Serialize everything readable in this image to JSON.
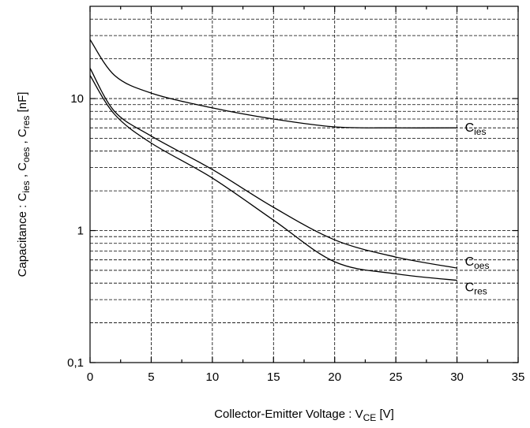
{
  "chart_data": {
    "type": "line",
    "title": "",
    "xlabel": {
      "main": "Collector-Emitter Voltage : V",
      "sub": "CE",
      "unit": " [V]"
    },
    "ylabel": [
      {
        "text": "Capacitance : C",
        "sub": false
      },
      {
        "text": "ies",
        "sub": true
      },
      {
        "text": " , C",
        "sub": false
      },
      {
        "text": "oes",
        "sub": true
      },
      {
        "text": " , C",
        "sub": false
      },
      {
        "text": "res",
        "sub": true
      },
      {
        "text": " [nF]",
        "sub": false
      }
    ],
    "xlim": [
      0,
      35
    ],
    "ylim": [
      0.1,
      50
    ],
    "yscale": "log",
    "grid": true,
    "x_ticks": [
      {
        "v": 0,
        "label": "0"
      },
      {
        "v": 5,
        "label": "5"
      },
      {
        "v": 10,
        "label": "10"
      },
      {
        "v": 15,
        "label": "15"
      },
      {
        "v": 20,
        "label": "20"
      },
      {
        "v": 25,
        "label": "25"
      },
      {
        "v": 30,
        "label": "30"
      },
      {
        "v": 35,
        "label": "35"
      }
    ],
    "y_ticks": [
      {
        "v": 0.1,
        "label": "0,1"
      },
      {
        "v": 1,
        "label": "1"
      },
      {
        "v": 10,
        "label": "10"
      }
    ],
    "series": [
      {
        "name": "C",
        "name_sub": "ies",
        "label_anchor": [
          30,
          6.0
        ],
        "x": [
          0,
          2,
          5,
          10,
          15,
          20,
          25,
          30
        ],
        "y": [
          28,
          15,
          11,
          8.5,
          7.0,
          6.1,
          6.0,
          6.0
        ]
      },
      {
        "name": "C",
        "name_sub": "oes",
        "label_anchor": [
          30,
          0.52
        ],
        "x": [
          0,
          2,
          5,
          10,
          15,
          20,
          25,
          30
        ],
        "y": [
          17,
          8,
          5.2,
          2.9,
          1.5,
          0.85,
          0.63,
          0.52
        ]
      },
      {
        "name": "C",
        "name_sub": "res",
        "label_anchor": [
          30,
          0.42
        ],
        "x": [
          0,
          2,
          5,
          10,
          15,
          20,
          25,
          30
        ],
        "y": [
          15,
          7.6,
          4.6,
          2.5,
          1.2,
          0.58,
          0.47,
          0.42
        ]
      }
    ]
  }
}
